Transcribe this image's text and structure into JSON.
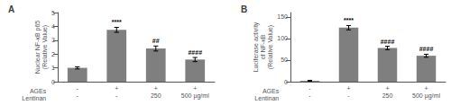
{
  "chart_data": [
    {
      "type": "bar",
      "title": "A",
      "categories": [
        "-\n-",
        "+\n-",
        "+\n250",
        "+\n500 µg/ml"
      ],
      "xlabel": "AGEs\nLentinan",
      "ylabel": "Nuclear NF-κB p65\n(Relative Value)",
      "values": [
        1.0,
        3.75,
        2.4,
        1.6
      ],
      "errors": [
        0.08,
        0.18,
        0.18,
        0.15
      ],
      "annotations": [
        null,
        "****",
        "##",
        "####"
      ],
      "color": "#7f7f7f",
      "ylim": [
        0,
        5
      ],
      "yticks": [
        0,
        1,
        2,
        3,
        4,
        5
      ],
      "grid": false
    },
    {
      "type": "bar",
      "title": "B",
      "categories": [
        "-\n-",
        "+\n-",
        "+\n250",
        "+\n500 µg/ml"
      ],
      "xlabel": "AGEs\nLentinan",
      "ylabel": "Luciferase activity\nof NF-κB\n(Relative Value)",
      "values": [
        2.0,
        125.0,
        78.0,
        60.0
      ],
      "errors": [
        1.0,
        5.0,
        4.0,
        3.5
      ],
      "annotations": [
        null,
        "****",
        "####",
        "####"
      ],
      "color": "#7f7f7f",
      "ylim": [
        0,
        160
      ],
      "yticks": [
        0,
        50,
        100,
        150
      ],
      "grid": false
    }
  ]
}
